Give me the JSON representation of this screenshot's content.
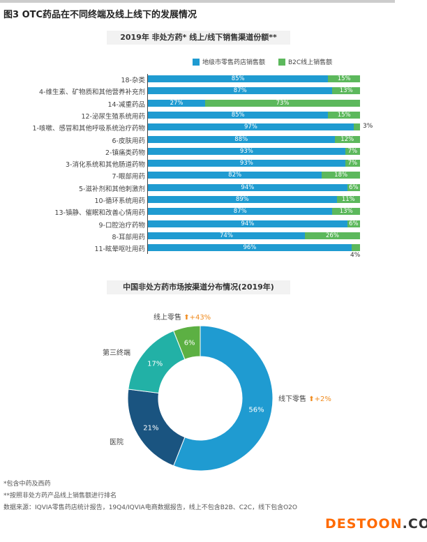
{
  "figure_title": "图3 OTC药品在不同终端及线上线下的发展情况",
  "watermark": {
    "main": "DESTOON",
    ".com": ".COM"
  },
  "notes": [
    "*包含中药及西药",
    "**按照非处方药产品线上销售额进行排名",
    "数据来源：IQVIA零售药店统计报告，19Q4/IQVIA电商数据报告，线上不包含B2B、C2C，线下包含O2O"
  ],
  "chart_data": [
    {
      "type": "bar",
      "stacked": true,
      "orientation": "horizontal",
      "title": "2019年 非处方药* 线上/线下销售渠道份额**",
      "legend_position": "top-right",
      "categories": [
        "18-杂类",
        "4-维生素、矿物质和其他营养补充剂",
        "14-减重药品",
        "12-泌尿生殖系统用药",
        "1-咳嗽、感冒和其他呼吸系统治疗药物",
        "6-皮肤用药",
        "2-镇痛类药物",
        "3-消化系统和其他肠道药物",
        "7-眼部用药",
        "5-滋补剂和其他刺激剂",
        "10-循环系统用药",
        "13-镇静、催眠和改善心情用药",
        "9-口腔治疗药物",
        "8-耳部用药",
        "11-眩晕呕吐用药"
      ],
      "series": [
        {
          "name": "地级市零售药店销售额",
          "color": "#1f9bd1",
          "values": [
            85,
            87,
            27,
            85,
            97,
            88,
            93,
            93,
            82,
            94,
            89,
            87,
            94,
            74,
            96
          ]
        },
        {
          "name": "B2C线上销售额",
          "color": "#5cb85c",
          "values": [
            15,
            13,
            73,
            15,
            3,
            12,
            7,
            7,
            18,
            6,
            11,
            13,
            6,
            26,
            4
          ]
        }
      ],
      "xlim": [
        0,
        100
      ]
    },
    {
      "type": "pie",
      "donut": true,
      "title": "中国非处方药市场按渠道分布情况(2019年)",
      "slices": [
        {
          "label": "线下零售",
          "value": 56,
          "color": "#1f9bd1",
          "growth": "+2%"
        },
        {
          "label": "医院",
          "value": 21,
          "color": "#1a5480",
          "growth": ""
        },
        {
          "label": "第三终端",
          "value": 17,
          "color": "#22b1a6",
          "growth": ""
        },
        {
          "label": "线上零售",
          "value": 6,
          "color": "#5cb043",
          "growth": "+43%"
        }
      ],
      "growth_color": "#f08a1c"
    }
  ]
}
